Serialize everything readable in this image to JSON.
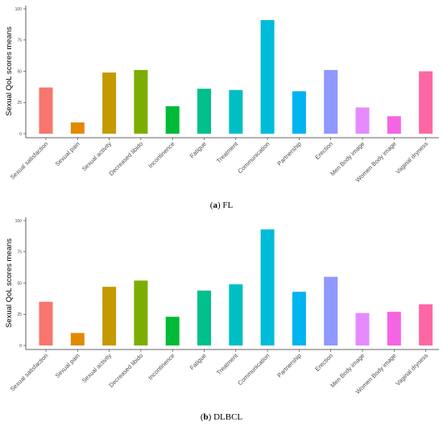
{
  "chart_data": [
    {
      "type": "bar",
      "caption_letter": "a",
      "caption_text": "FL",
      "ylabel": "Sexual QoL scores means",
      "xlabel": "",
      "ylim": [
        0,
        100
      ],
      "yticks": [
        "0",
        "25",
        "50",
        "75",
        "100"
      ],
      "grid": false,
      "categories": [
        "Sexual satisfaction",
        "Sexual pain",
        "Sexual activity",
        "Decreased libido",
        "Incontinence",
        "Fatigue",
        "Treatment",
        "Communication",
        "Partnership",
        "Erection",
        "Men Body image",
        "Women Body image",
        "Vaginal dryness"
      ],
      "values": [
        37,
        9,
        49,
        51,
        22,
        36,
        35,
        91,
        34,
        51,
        21,
        14,
        50
      ]
    },
    {
      "type": "bar",
      "caption_letter": "b",
      "caption_text": "DLBCL",
      "ylabel": "Sexual QoL scores means",
      "xlabel": "",
      "ylim": [
        0,
        100
      ],
      "yticks": [
        "0",
        "25",
        "50",
        "75",
        "100"
      ],
      "grid": false,
      "categories": [
        "Sexual satisfaction",
        "Sexual pain",
        "Sexual activity",
        "Decreased libido",
        "Incontinence",
        "Fatigue",
        "Treatment",
        "Communication",
        "Partnership",
        "Erection",
        "Men Body image",
        "Women Body image",
        "Vaginal dryness"
      ],
      "values": [
        35,
        10,
        47,
        52,
        23,
        44,
        49,
        93,
        43,
        55,
        26,
        27,
        33
      ]
    }
  ],
  "colors": [
    "#F8766D",
    "#E38900",
    "#C49A00",
    "#7CAE00",
    "#00BA38",
    "#00C08B",
    "#00BFC4",
    "#00BCD8",
    "#00B4F0",
    "#8F98FF",
    "#E58AFF",
    "#F564E3",
    "#FF67A4"
  ]
}
